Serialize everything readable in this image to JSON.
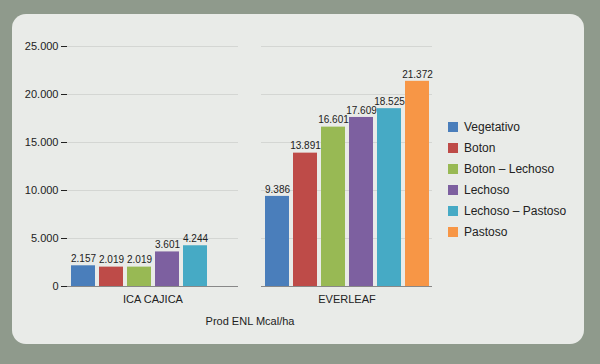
{
  "chart_data": {
    "type": "bar",
    "x_label": "Prod ENL Mcal/ha",
    "categories": [
      "ICA CAJICA",
      "EVERLEAF"
    ],
    "series": [
      {
        "name": "Vegetativo",
        "color": "#4a7ebb",
        "values": [
          2157,
          9386
        ],
        "value_labels": [
          "2.157",
          "9.386"
        ]
      },
      {
        "name": "Boton",
        "color": "#be4b48",
        "values": [
          2019,
          13891
        ],
        "value_labels": [
          "2.019",
          "13.891"
        ]
      },
      {
        "name": "Boton – Lechoso",
        "color": "#98b954",
        "values": [
          2019,
          16601
        ],
        "value_labels": [
          "2.019",
          "16.601"
        ]
      },
      {
        "name": "Lechoso",
        "color": "#7d60a0",
        "values": [
          3601,
          17609
        ],
        "value_labels": [
          "3.601",
          "17.609"
        ]
      },
      {
        "name": "Lechoso – Pastoso",
        "color": "#46aac5",
        "values": [
          4244,
          18525
        ],
        "value_labels": [
          "4.244",
          "18.525"
        ]
      },
      {
        "name": "Pastoso",
        "color": "#f79646",
        "values": [
          null,
          21372
        ],
        "value_labels": [
          null,
          "21.372"
        ]
      }
    ],
    "ylim": [
      0,
      25000
    ],
    "yticks": [
      0,
      {
        "value": 5000,
        "label": "5.000"
      },
      {
        "value": 10000,
        "label": "10.000"
      },
      {
        "value": 15000,
        "label": "15.000"
      },
      {
        "value": 20000,
        "label": "20.000"
      },
      {
        "value": 25000,
        "label": "25.000"
      }
    ],
    "grid": true,
    "data_labels": true,
    "legend": "right"
  }
}
